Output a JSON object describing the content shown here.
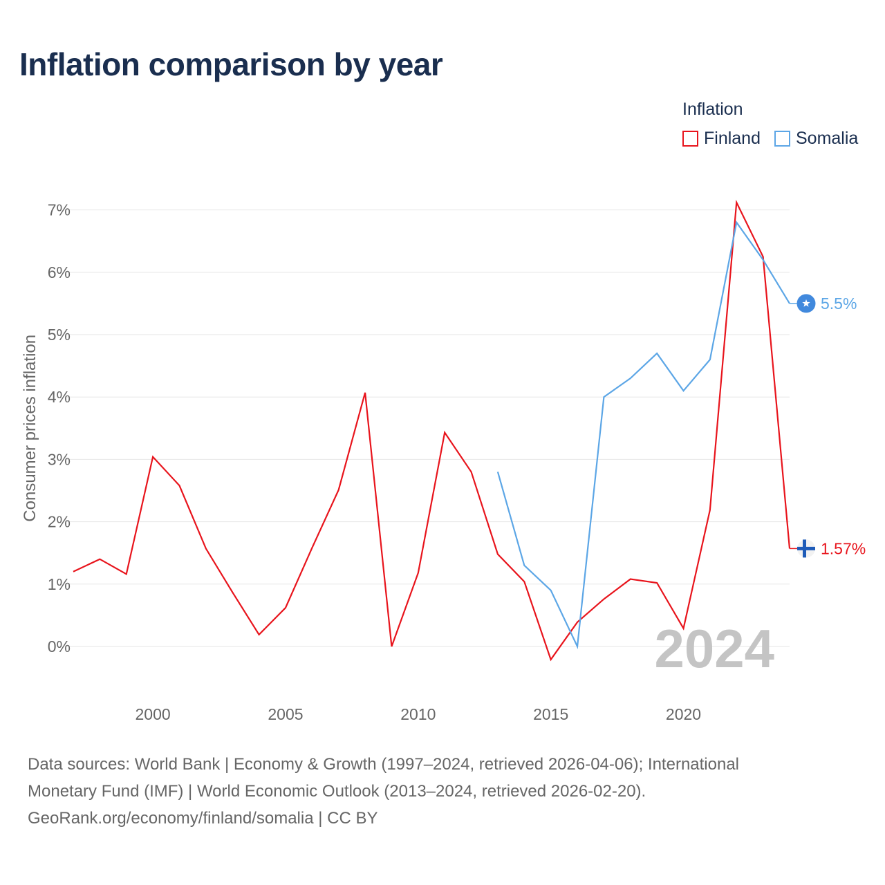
{
  "title": "Inflation comparison by year",
  "legend": {
    "title": "Inflation",
    "items": [
      {
        "label": "Finland",
        "color": "#e8141c"
      },
      {
        "label": "Somalia",
        "color": "#5ca6e6"
      }
    ]
  },
  "chart_data": {
    "type": "line",
    "title": "Inflation comparison by year",
    "ylabel": "Consumer prices inflation",
    "xlabel": "",
    "xlim": [
      1997,
      2024
    ],
    "ylim": [
      -0.8,
      7.5
    ],
    "yticks": [
      0,
      1,
      2,
      3,
      4,
      5,
      6,
      7
    ],
    "ytick_labels": [
      "0%",
      "1%",
      "2%",
      "3%",
      "4%",
      "5%",
      "6%",
      "7%"
    ],
    "xticks": [
      2000,
      2005,
      2010,
      2015,
      2020
    ],
    "xtick_labels": [
      "2000",
      "2005",
      "2010",
      "2015",
      "2020"
    ],
    "grid": true,
    "year_watermark": "2024",
    "series": [
      {
        "name": "Finland",
        "color": "#e8141c",
        "end_label": "1.57%",
        "flag_icon": "finland-flag-icon",
        "x": [
          1997,
          1998,
          1999,
          2000,
          2001,
          2002,
          2003,
          2004,
          2005,
          2006,
          2007,
          2008,
          2009,
          2010,
          2011,
          2012,
          2013,
          2014,
          2015,
          2016,
          2017,
          2018,
          2019,
          2020,
          2021,
          2022,
          2023,
          2024
        ],
        "y": [
          1.2,
          1.4,
          1.16,
          3.04,
          2.58,
          1.57,
          0.87,
          0.19,
          0.62,
          1.58,
          2.51,
          4.07,
          0.0,
          1.18,
          3.43,
          2.8,
          1.48,
          1.04,
          -0.21,
          0.39,
          0.76,
          1.08,
          1.02,
          0.29,
          2.19,
          7.12,
          6.25,
          1.57
        ]
      },
      {
        "name": "Somalia",
        "color": "#5ca6e6",
        "end_label": "5.5%",
        "flag_icon": "somalia-flag-icon",
        "x": [
          2013,
          2014,
          2015,
          2016,
          2017,
          2018,
          2019,
          2020,
          2021,
          2022,
          2023,
          2024
        ],
        "y": [
          2.8,
          1.3,
          0.9,
          0.0,
          4.0,
          4.3,
          4.7,
          4.1,
          4.6,
          6.8,
          6.2,
          5.5
        ]
      }
    ]
  },
  "sources": {
    "line1": "Data sources: World Bank | Economy & Growth (1997–2024, retrieved 2026-04-06); International",
    "line2": "Monetary Fund (IMF) | World Economic Outlook (2013–2024, retrieved 2026-02-20).",
    "line3": "GeoRank.org/economy/finland/somalia | CC BY"
  }
}
